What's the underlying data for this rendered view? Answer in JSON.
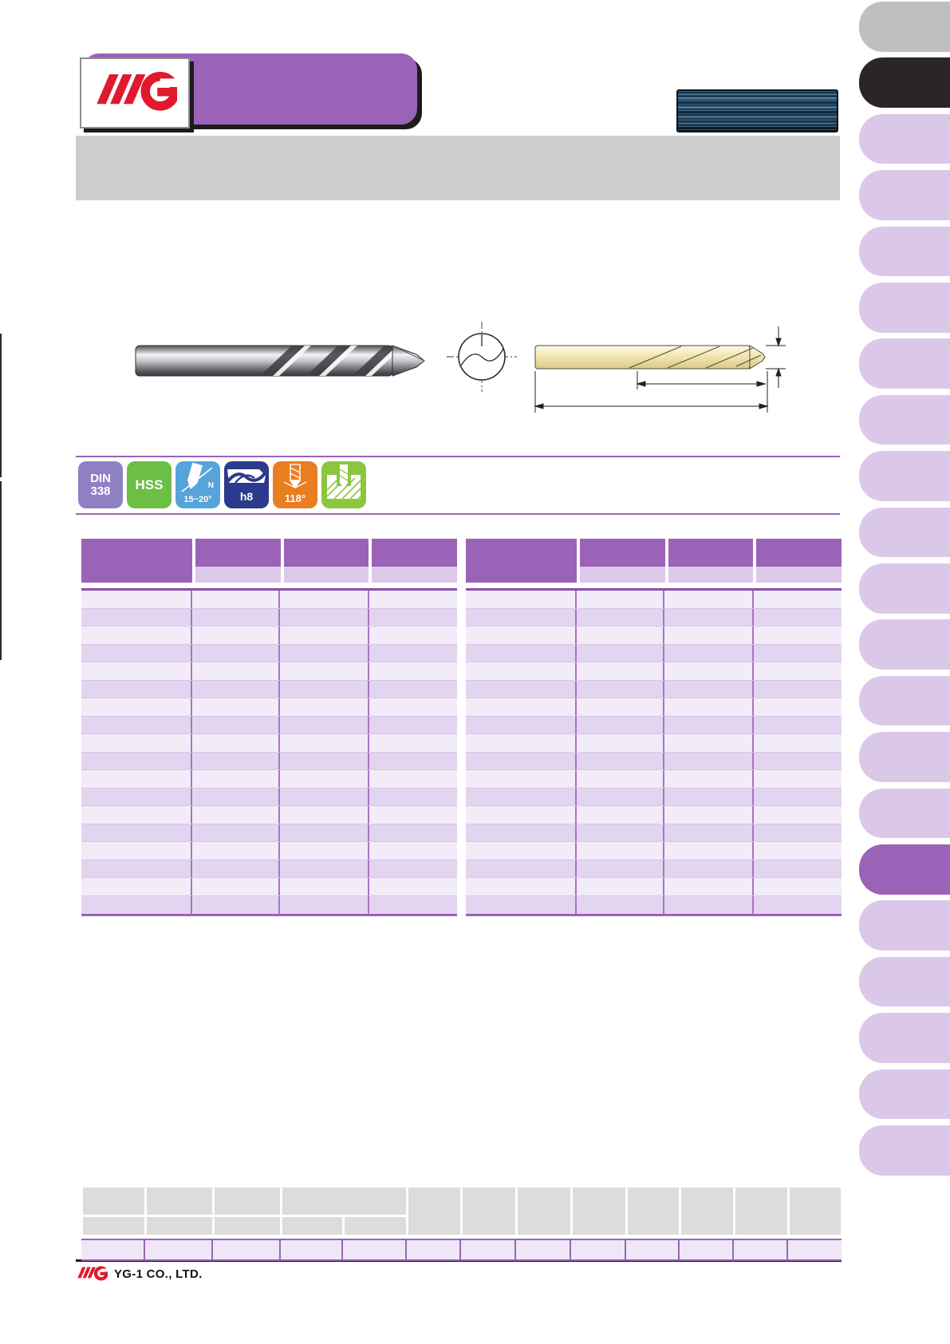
{
  "brand": {
    "logo_text": "YG",
    "footer_text": "YG-1 CO., LTD.",
    "logo_color": "#e0192d"
  },
  "header": {
    "banner_color": "#9b63b8",
    "bar_color": "#cecece"
  },
  "images": {
    "product_photo": "jobber-length-drill-photo",
    "bundle_photo": "drill-set-bundle-photo",
    "cross_section": "drill-cross-section-drawing",
    "dimension_drawing": "drill-dimension-drawing"
  },
  "spec_badges": [
    {
      "id": "din-338",
      "line1": "DIN",
      "line2": "338",
      "color": "#8f80c4"
    },
    {
      "id": "hss",
      "label": "HSS",
      "color": "#6cbe45"
    },
    {
      "id": "helix-angle",
      "label_n": "N",
      "label_angle": "15~20°",
      "color": "#56a4d9"
    },
    {
      "id": "shank-tolerance",
      "label": "h8",
      "color": "#2b3a8c"
    },
    {
      "id": "point-angle",
      "label": "118°",
      "color": "#e97e20"
    },
    {
      "id": "application-material",
      "color": "#8cc63f"
    }
  ],
  "size_tables": {
    "table_count": 2,
    "column_count": 4,
    "data_row_count": 18,
    "cell_text": "",
    "header_color": "#9b63b8",
    "subheader_color": "#dcc9ea",
    "row_color_a": "#f2ecf9",
    "row_color_b": "#e3d5ef"
  },
  "bottom_table": {
    "header_row1_cell_count": 12,
    "header_row2_cell_count": 5,
    "data_cell_count": 13,
    "cell_text": "",
    "header_color": "#dcdcdc",
    "data_row_color": "#efe7f7"
  },
  "tab_rail": {
    "tab_count": 21,
    "gray_tab_index": 0,
    "black_tab_index": 1,
    "active_tab_index": 15,
    "tab_color": "#dbc8e9",
    "active_color": "#9b63b8",
    "gray_color": "#bfbfbf",
    "black_color": "#2b2527"
  }
}
